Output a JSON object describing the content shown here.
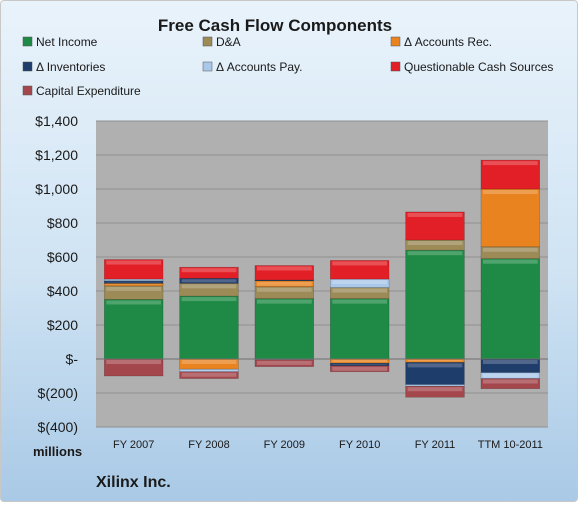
{
  "chart_data": {
    "type": "bar",
    "stacked": true,
    "title": "Free Cash Flow Components",
    "units_label": "millions",
    "footer": "Xilinx Inc.",
    "categories": [
      "FY 2007",
      "FY 2008",
      "FY 2009",
      "FY 2010",
      "FY 2011",
      "TTM 10-2011"
    ],
    "y_ticks": [
      "$1,400",
      "$1,200",
      "$1,000",
      "$800",
      "$600",
      "$400",
      "$200",
      "$-",
      "$(200)",
      "$(400)"
    ],
    "ylim": [
      -400,
      1400
    ],
    "legend_position": "top",
    "series": [
      {
        "name": "Net Income",
        "color": "#1e8a45",
        "values": [
          350,
          370,
          355,
          355,
          640,
          590
        ]
      },
      {
        "name": "D&A",
        "color": "#9c8a57",
        "values": [
          80,
          75,
          70,
          65,
          60,
          70
        ]
      },
      {
        "name": "Δ Accounts Rec.",
        "color": "#e8831f",
        "values": [
          15,
          -60,
          35,
          -25,
          -20,
          340
        ]
      },
      {
        "name": "Δ Inventories",
        "color": "#1f3d6b",
        "values": [
          15,
          30,
          5,
          -15,
          -130,
          -80
        ]
      },
      {
        "name": "Δ Accounts Pay.",
        "color": "#a9c8ea",
        "values": [
          10,
          -15,
          -5,
          50,
          -10,
          -35
        ]
      },
      {
        "name": "Questionable Cash Sources",
        "color": "#e21f26",
        "values": [
          115,
          65,
          85,
          110,
          165,
          170
        ]
      },
      {
        "name": "Capital Expenditure",
        "color": "#a4474d",
        "values": [
          -100,
          -40,
          -40,
          -35,
          -65,
          -60
        ]
      }
    ]
  }
}
